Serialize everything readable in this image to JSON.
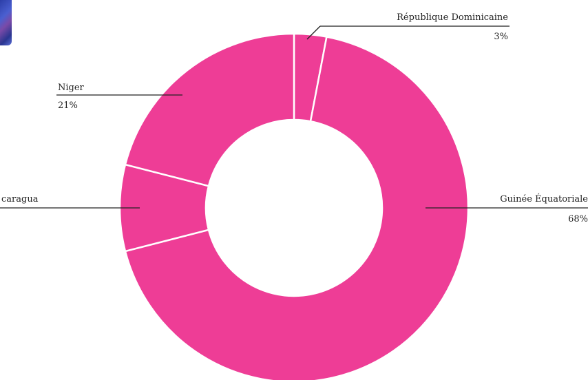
{
  "chart_data": {
    "type": "pie",
    "donut": true,
    "colors": {
      "slice": "#ee3d96",
      "separator": "#ffffff",
      "leader": "#222222",
      "label": "#222222"
    },
    "slices": [
      {
        "name": "République Dominicaine",
        "value": 3,
        "label": "3%"
      },
      {
        "name": "Guinée Équatoriale",
        "value": 68,
        "label": "68%"
      },
      {
        "name": "Nicaragua",
        "visible_name": "caragua",
        "value": 8,
        "label": ""
      },
      {
        "name": "Niger",
        "value": 21,
        "label": "21%"
      }
    ]
  },
  "thumbnail": {
    "icon": "image-thumbnail-icon"
  }
}
